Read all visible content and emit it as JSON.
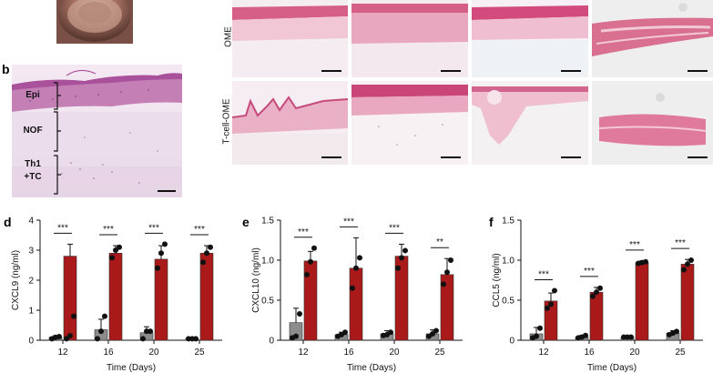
{
  "panel_letters": {
    "b": "b",
    "d": "d",
    "e": "e",
    "f": "f"
  },
  "histology": {
    "layer_labels": [
      "Epi",
      "NOF",
      "Th1",
      "+TC"
    ],
    "row_labels": [
      "OME",
      "T-cell-OME"
    ]
  },
  "chart_data": [
    {
      "type": "bar",
      "categories": [
        "12",
        "16",
        "20",
        "25"
      ],
      "series": [
        {
          "values": [
            0.1,
            0.35,
            0.25,
            0.05
          ],
          "color": "#8c8c8c"
        },
        {
          "values": [
            2.8,
            2.9,
            2.7,
            2.9
          ],
          "color": "#aa1a1a"
        }
      ],
      "points": [
        [
          [
            0.05,
            0.1,
            0.12
          ],
          [
            0.05,
            0.15,
            0.8
          ]
        ],
        [
          [
            0.05,
            0.3,
            0.8
          ],
          [
            2.75,
            3.0,
            3.1
          ]
        ],
        [
          [
            0.05,
            0.3,
            0.3
          ],
          [
            2.4,
            2.9,
            3.2
          ]
        ],
        [
          [
            0.05,
            0.05,
            0.05
          ],
          [
            2.6,
            2.9,
            3.1
          ]
        ]
      ],
      "error": [
        [
          0.05,
          0.4
        ],
        [
          0.35,
          0.25
        ],
        [
          0.2,
          0.45
        ],
        [
          0.02,
          0.25
        ]
      ],
      "significance": [
        "***",
        "***",
        "***",
        "***"
      ],
      "ylabel": "CXCL9 (ng/ml)",
      "xlabel": "Time (Days)",
      "ylim": [
        0,
        4
      ],
      "yticks": [
        "0",
        "1",
        "2",
        "3",
        "4"
      ]
    },
    {
      "type": "bar",
      "categories": [
        "12",
        "16",
        "20",
        "25"
      ],
      "series": [
        {
          "values": [
            0.22,
            0.07,
            0.08,
            0.08
          ],
          "color": "#8c8c8c"
        },
        {
          "values": [
            0.99,
            0.9,
            1.05,
            0.82
          ],
          "color": "#aa1a1a"
        }
      ],
      "points": [
        [
          [
            0.03,
            0.05,
            0.33
          ],
          [
            0.82,
            0.98,
            1.15
          ]
        ],
        [
          [
            0.05,
            0.07,
            0.1
          ],
          [
            0.65,
            0.9,
            1.03
          ]
        ],
        [
          [
            0.06,
            0.07,
            0.1
          ],
          [
            0.9,
            1.03,
            1.12
          ]
        ],
        [
          [
            0.05,
            0.08,
            0.12
          ],
          [
            0.7,
            0.85,
            1.0
          ]
        ]
      ],
      "error": [
        [
          0.18,
          0.12
        ],
        [
          0.03,
          0.38
        ],
        [
          0.04,
          0.15
        ],
        [
          0.05,
          0.2
        ]
      ],
      "significance": [
        "***",
        "***",
        "***",
        "**"
      ],
      "ylabel": "CXCL10 (ng/ml)",
      "xlabel": "Time (Days)",
      "ylim": [
        0,
        1.5
      ],
      "yticks": [
        "0",
        "0.5",
        "1.0",
        "1.5"
      ]
    },
    {
      "type": "bar",
      "categories": [
        "12",
        "16",
        "20",
        "25"
      ],
      "series": [
        {
          "values": [
            0.08,
            0.04,
            0.04,
            0.09
          ],
          "color": "#8c8c8c"
        },
        {
          "values": [
            0.49,
            0.6,
            0.97,
            0.95
          ],
          "color": "#aa1a1a"
        }
      ],
      "points": [
        [
          [
            0.03,
            0.05,
            0.15
          ],
          [
            0.4,
            0.45,
            0.62
          ]
        ],
        [
          [
            0.03,
            0.04,
            0.06
          ],
          [
            0.55,
            0.6,
            0.65
          ]
        ],
        [
          [
            0.04,
            0.04,
            0.04
          ],
          [
            0.96,
            0.97,
            0.98
          ]
        ],
        [
          [
            0.07,
            0.09,
            0.11
          ],
          [
            0.88,
            0.95,
            1.0
          ]
        ]
      ],
      "error": [
        [
          0.08,
          0.1
        ],
        [
          0.02,
          0.06
        ],
        [
          0.01,
          0.02
        ],
        [
          0.03,
          0.06
        ]
      ],
      "significance": [
        "***",
        "***",
        "***",
        "***"
      ],
      "ylabel": "CCL5 (ng/ml)",
      "xlabel": "Time (Days)",
      "ylim": [
        0,
        1.5
      ],
      "yticks": [
        "0",
        "0.5",
        "1.0",
        "1.5"
      ]
    }
  ]
}
